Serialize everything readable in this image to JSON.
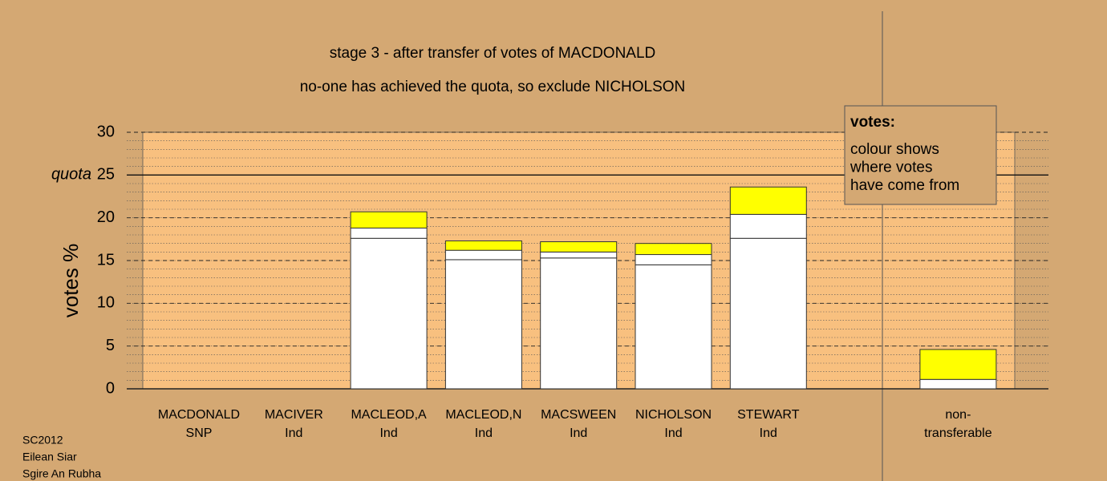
{
  "chart_data": {
    "type": "stacked_bar",
    "title": "stage 3 - after transfer of votes of MACDONALD",
    "subtitle": "no-one has achieved the quota, so exclude NICHOLSON",
    "y_label": "votes %",
    "categories": [
      [
        "MACDONALD",
        "SNP"
      ],
      [
        "MACIVER",
        "Ind"
      ],
      [
        "MACLEOD,A",
        "Ind"
      ],
      [
        "MACLEOD,N",
        "Ind"
      ],
      [
        "MACSWEEN",
        "Ind"
      ],
      [
        "NICHOLSON",
        "Ind"
      ],
      [
        "STEWART",
        "Ind"
      ],
      [
        "non-",
        "transferable"
      ]
    ],
    "series": [
      {
        "color": "#ffffff",
        "values": [
          0,
          0,
          17.6,
          15.1,
          15.3,
          14.5,
          17.6,
          0
        ]
      },
      {
        "color": "#ffffff",
        "values": [
          0,
          0,
          1.2,
          1.1,
          0.7,
          1.2,
          2.8,
          1.1
        ]
      },
      {
        "color": "#ffff00",
        "values": [
          0,
          0,
          1.9,
          1.1,
          1.2,
          1.3,
          3.2,
          3.5
        ]
      }
    ],
    "ylim": [
      0,
      30
    ],
    "yticks": [
      0,
      5,
      10,
      15,
      20,
      30
    ],
    "quota": {
      "value": 25,
      "label": "quota"
    },
    "quota_tick": 25,
    "note_title": "votes:",
    "note": [
      "colour shows",
      "where votes",
      "have come from"
    ],
    "footer": [
      "SC2012",
      "Eilean Siar",
      "Sgire An Rubha"
    ]
  }
}
